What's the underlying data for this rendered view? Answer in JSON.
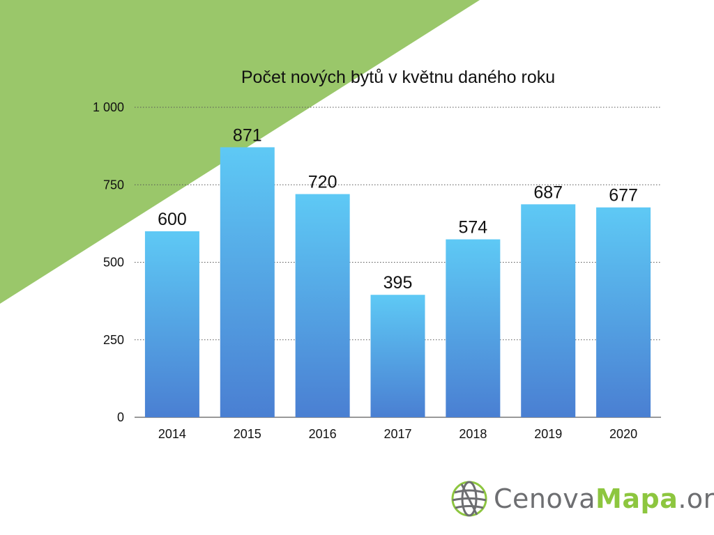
{
  "colors": {
    "background": "#ffffff",
    "green_triangle": "#9ac76a",
    "bar_top": "#5ec9f5",
    "bar_bottom": "#4a7fd2",
    "grid": "#555555",
    "text": "#111111",
    "logo_grey": "#6d6e71",
    "logo_green": "#8dc63f"
  },
  "chart_data": {
    "type": "bar",
    "title": "Počet nových bytů v květnu daného roku",
    "categories": [
      "2014",
      "2015",
      "2016",
      "2017",
      "2018",
      "2019",
      "2020"
    ],
    "values": [
      600,
      871,
      720,
      395,
      574,
      687,
      677
    ],
    "data_labels": [
      "600",
      "871",
      "720",
      "395",
      "574",
      "687",
      "677"
    ],
    "ylim": [
      0,
      1000
    ],
    "yticks": [
      0,
      250,
      500,
      750,
      1000
    ],
    "ytick_labels": [
      "0",
      "250",
      "500",
      "750",
      "1 000"
    ],
    "grid": "horizontal dotted",
    "legend": "none"
  },
  "logo": {
    "icon": "globe-icon",
    "part1": "Cenova",
    "part2": "Mapa",
    "part3": ".org"
  }
}
